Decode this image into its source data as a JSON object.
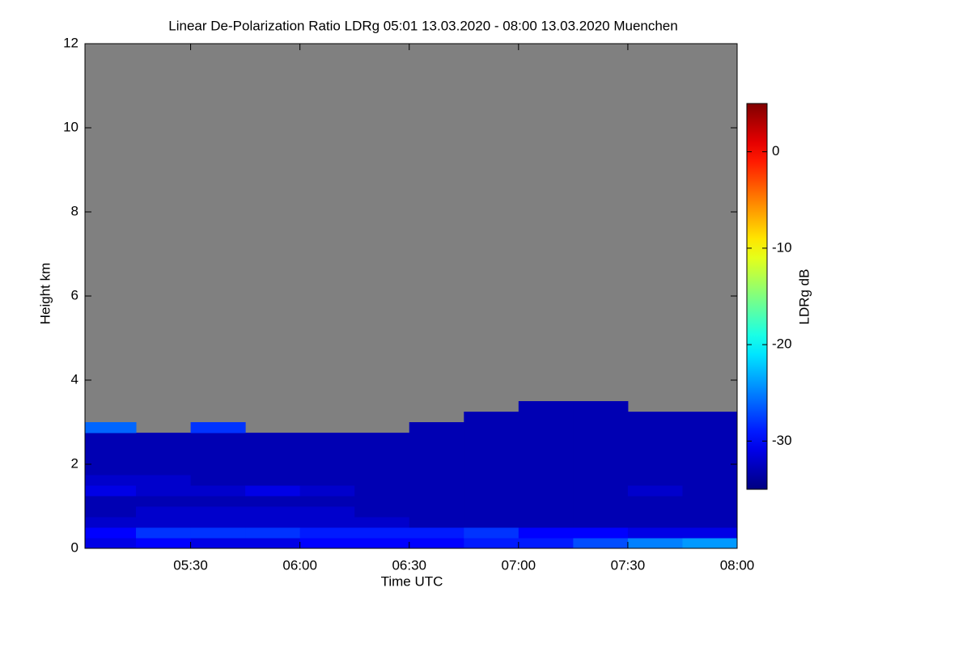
{
  "chart_data": {
    "type": "heatmap",
    "title": "Linear De-Polarization Ratio LDRg   05:01 13.03.2020 - 08:00 13.03.2020 Muenchen",
    "x_label": "Time UTC",
    "y_label": "Height km",
    "colorbar_label": "LDRg dB",
    "xlim": [
      5.0167,
      8.0
    ],
    "xticks": [
      {
        "value": 5.5,
        "label": "05:30"
      },
      {
        "value": 6.0,
        "label": "06:00"
      },
      {
        "value": 6.5,
        "label": "06:30"
      },
      {
        "value": 7.0,
        "label": "07:00"
      },
      {
        "value": 7.5,
        "label": "07:30"
      },
      {
        "value": 8.0,
        "label": "08:00"
      }
    ],
    "ylim": [
      0,
      12
    ],
    "yticks": [
      0,
      2,
      4,
      6,
      8,
      10,
      12
    ],
    "clim": [
      -35,
      5
    ],
    "cticks": [
      0,
      -10,
      -20,
      -30
    ],
    "colormap": "jet",
    "x": [
      5.125,
      5.375,
      5.625,
      5.875,
      6.125,
      6.375,
      6.625,
      6.875,
      7.125,
      7.375,
      7.625,
      7.875
    ],
    "y": [
      0.125,
      0.375,
      0.625,
      0.875,
      1.125,
      1.375,
      1.625,
      1.875,
      2.125,
      2.375,
      2.625,
      2.875,
      3.125,
      3.375
    ],
    "z": [
      [
        -31,
        -30,
        -31,
        -31,
        -30,
        -30,
        -30,
        -29,
        -29,
        -27,
        -25,
        -24
      ],
      [
        -30,
        -28,
        -28,
        -28,
        -29,
        -29,
        -29,
        -28,
        -30,
        -30,
        -31,
        -31
      ],
      [
        -32,
        -32,
        -32,
        -32,
        -32,
        -32,
        -33,
        -33,
        -33,
        -33,
        -33,
        -33
      ],
      [
        -33,
        -32,
        -32,
        -32,
        -32,
        -33,
        -33,
        -33,
        -33,
        -33,
        -33,
        -33
      ],
      [
        -33,
        -33,
        -33,
        -33,
        -33,
        -33,
        -33,
        -33,
        -33,
        -33,
        -33,
        -33
      ],
      [
        -31,
        -32,
        -32,
        -31,
        -32,
        -33,
        -33,
        -33,
        -33,
        -33,
        -32,
        -33
      ],
      [
        -32,
        -32,
        -33,
        -33,
        -33,
        -33,
        -33,
        -33,
        -33,
        -33,
        -33,
        -33
      ],
      [
        -33,
        -33,
        -33,
        -33,
        -33,
        -33,
        -33,
        -33,
        -33,
        -33,
        -33,
        -33
      ],
      [
        -33,
        -33,
        -33,
        -33,
        -33,
        -33,
        -33,
        -33,
        -33,
        -33,
        -33,
        -33
      ],
      [
        -33,
        -33,
        -33,
        -33,
        -33,
        -33,
        -33,
        -33,
        -33,
        -33,
        -33,
        -33
      ],
      [
        -33,
        -33,
        -33,
        -33,
        -33,
        -33,
        -33,
        -33,
        -33,
        -33,
        -33,
        -33
      ],
      [
        -26,
        null,
        -28,
        null,
        null,
        null,
        -33,
        -33,
        -33,
        -33,
        -33,
        -33
      ],
      [
        null,
        null,
        null,
        null,
        null,
        null,
        null,
        -33,
        -33,
        -33,
        -33,
        -33
      ],
      [
        null,
        null,
        null,
        null,
        null,
        null,
        null,
        null,
        -33,
        -33,
        null,
        null
      ]
    ]
  }
}
